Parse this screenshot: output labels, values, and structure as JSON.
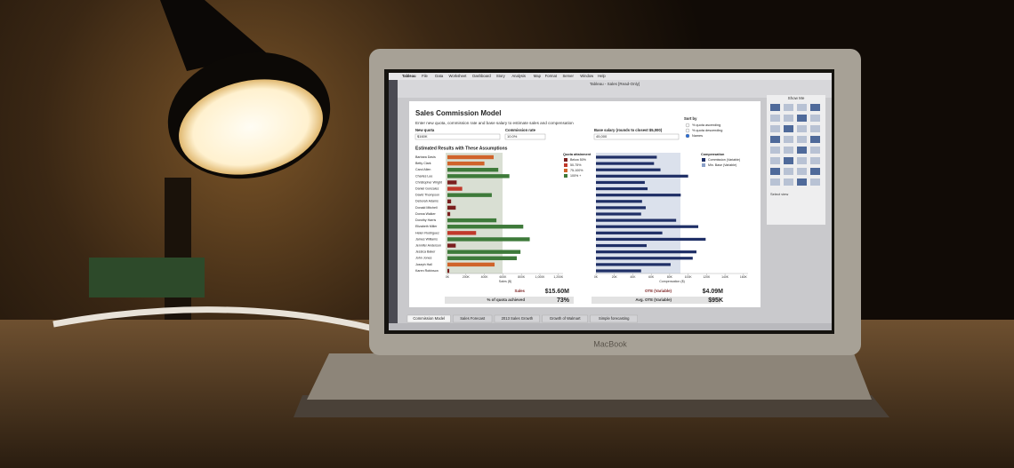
{
  "window": {
    "menu": [
      "Tableau",
      "File",
      "Data",
      "Worksheet",
      "Dashboard",
      "Story",
      "Analysis",
      "Map",
      "Format",
      "Server",
      "Window",
      "Help"
    ],
    "title": "Tableau - Sales [Read-Only]"
  },
  "dashboard": {
    "title": "Sales Commission Model",
    "subtitle": "Enter new quota, commission rate and base salary to estimate sales and compensation",
    "controls": [
      {
        "label": "New quota",
        "value": "$160K"
      },
      {
        "label": "Commission rate",
        "value": "10.0%"
      },
      {
        "label": "Base salary (rounds to closest $5,000)",
        "value": "45,000"
      }
    ],
    "sort": {
      "label": "Sort by",
      "options": [
        "% quota ascending",
        "% quota descending",
        "Names"
      ]
    },
    "section_title": "Estimated Results with These Assumptions",
    "names": [
      "Barbara Davis",
      "Betty Clark",
      "Carol Allen",
      "Charles Lee",
      "Christopher Wright",
      "Daniel Gonzalez",
      "David Thompson",
      "Deborah Adams",
      "Donald Mitchell",
      "Donna Walker",
      "Dorothy Harris",
      "Elizabeth Miller",
      "Helen Rodriguez",
      "James Williams",
      "Jennifer Anderson",
      "Jessica Baker",
      "John Jones",
      "Joseph Hall",
      "Karen Robinson"
    ],
    "sales": {
      "values": [
        500,
        400,
        550,
        670,
        100,
        160,
        480,
        40,
        90,
        30,
        530,
        820,
        310,
        890,
        90,
        790,
        750,
        510,
        20
      ],
      "colors": [
        "#d0632a",
        "#d0632a",
        "#3e7a3a",
        "#3e7a3a",
        "#7a1f1f",
        "#c0392b",
        "#3e7a3a",
        "#7a1f1f",
        "#7a1f1f",
        "#7a1f1f",
        "#3e7a3a",
        "#3e7a3a",
        "#c0392b",
        "#3e7a3a",
        "#7a1f1f",
        "#3e7a3a",
        "#3e7a3a",
        "#d0632a",
        "#7a1f1f"
      ],
      "xlim": [
        0,
        1250
      ],
      "xticks": [
        {
          "value": 0,
          "label": "0K"
        },
        {
          "value": 200,
          "label": "200K"
        },
        {
          "value": 400,
          "label": "400K"
        },
        {
          "value": 600,
          "label": "600K"
        },
        {
          "value": 800,
          "label": "800K"
        },
        {
          "value": 1000,
          "label": "1,000K"
        },
        {
          "value": 1200,
          "label": "1,200K"
        }
      ],
      "axis_label": "Sales ($)"
    },
    "quota_legend": {
      "title": "Quota attainment",
      "items": [
        {
          "label": "Below 50%",
          "color": "#7a1f1f"
        },
        {
          "label": "50-75%",
          "color": "#c0392b"
        },
        {
          "label": "75-100%",
          "color": "#d0632a"
        },
        {
          "label": "100% +",
          "color": "#3e7a3a"
        }
      ]
    },
    "compensation": {
      "values": [
        66,
        63,
        70,
        100,
        53,
        56,
        92,
        50,
        54,
        49,
        87,
        111,
        72,
        119,
        55,
        109,
        105,
        81,
        49
      ],
      "color": "#1f2f66",
      "xlim": [
        0,
        165
      ],
      "xticks": [
        {
          "value": 0,
          "label": "0K"
        },
        {
          "value": 20,
          "label": "20K"
        },
        {
          "value": 40,
          "label": "40K"
        },
        {
          "value": 60,
          "label": "60K"
        },
        {
          "value": 80,
          "label": "80K"
        },
        {
          "value": 100,
          "label": "100K"
        },
        {
          "value": 120,
          "label": "120K"
        },
        {
          "value": 140,
          "label": "140K"
        },
        {
          "value": 160,
          "label": "160K"
        }
      ],
      "axis_label": "Compensation ($)",
      "legend_title": "Compensation",
      "legend": [
        {
          "label": "Commission (Variable)",
          "color": "#1f2f66"
        },
        {
          "label": "Min. Base (Variable)",
          "color": "#8aa0c8"
        }
      ]
    },
    "kpis": [
      {
        "label": "Sales",
        "value": "$15.60M"
      },
      {
        "label": "% of quota achieved",
        "value": "73%"
      },
      {
        "label": "OTE (Variable)",
        "value": "$4.09M"
      },
      {
        "label": "Avg. OTE (Variable)",
        "value": "$95K"
      }
    ]
  },
  "tabs": [
    "Commission Model",
    "Sales Forecast",
    "2013 Sales Growth",
    "Growth of Walmart",
    "Simple forecasting"
  ],
  "show_me": {
    "title": "Show Me",
    "footer": "Select view"
  },
  "laptop_brand": "MacBook"
}
